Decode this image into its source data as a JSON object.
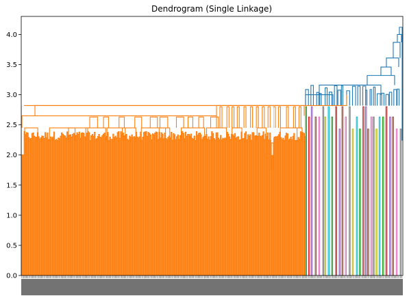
{
  "chart_data": {
    "type": "dendrogram",
    "title": "Dendrogram (Single Linkage)",
    "xlabel": "",
    "ylabel": "",
    "ylim": [
      0,
      4.3
    ],
    "yticks": [
      "0.0",
      "0.5",
      "1.0",
      "1.5",
      "2.0",
      "2.5",
      "3.0",
      "3.5",
      "4.0"
    ],
    "grid": false,
    "legend": "none",
    "cluster_colors": [
      "#ff7f0e",
      "#2ca02c",
      "#d62728",
      "#9467bd",
      "#8c564b",
      "#e377c2",
      "#7f7f7f",
      "#bcbd22",
      "#17becf"
    ],
    "above_threshold_color": "#1f77b4",
    "main_cluster": {
      "color": "#ff7f0e",
      "leaf_fraction": 0.745,
      "top_merge_height": 2.82,
      "inner_merge_heights": [
        2.0,
        2.24,
        2.45,
        2.65,
        2.82
      ]
    },
    "top_merges": [
      {
        "height": 3.0
      },
      {
        "height": 3.16
      },
      {
        "height": 3.32
      },
      {
        "height": 3.46
      },
      {
        "height": 3.61
      },
      {
        "height": 3.87
      },
      {
        "height": 4.0
      },
      {
        "height": 4.12
      }
    ]
  }
}
